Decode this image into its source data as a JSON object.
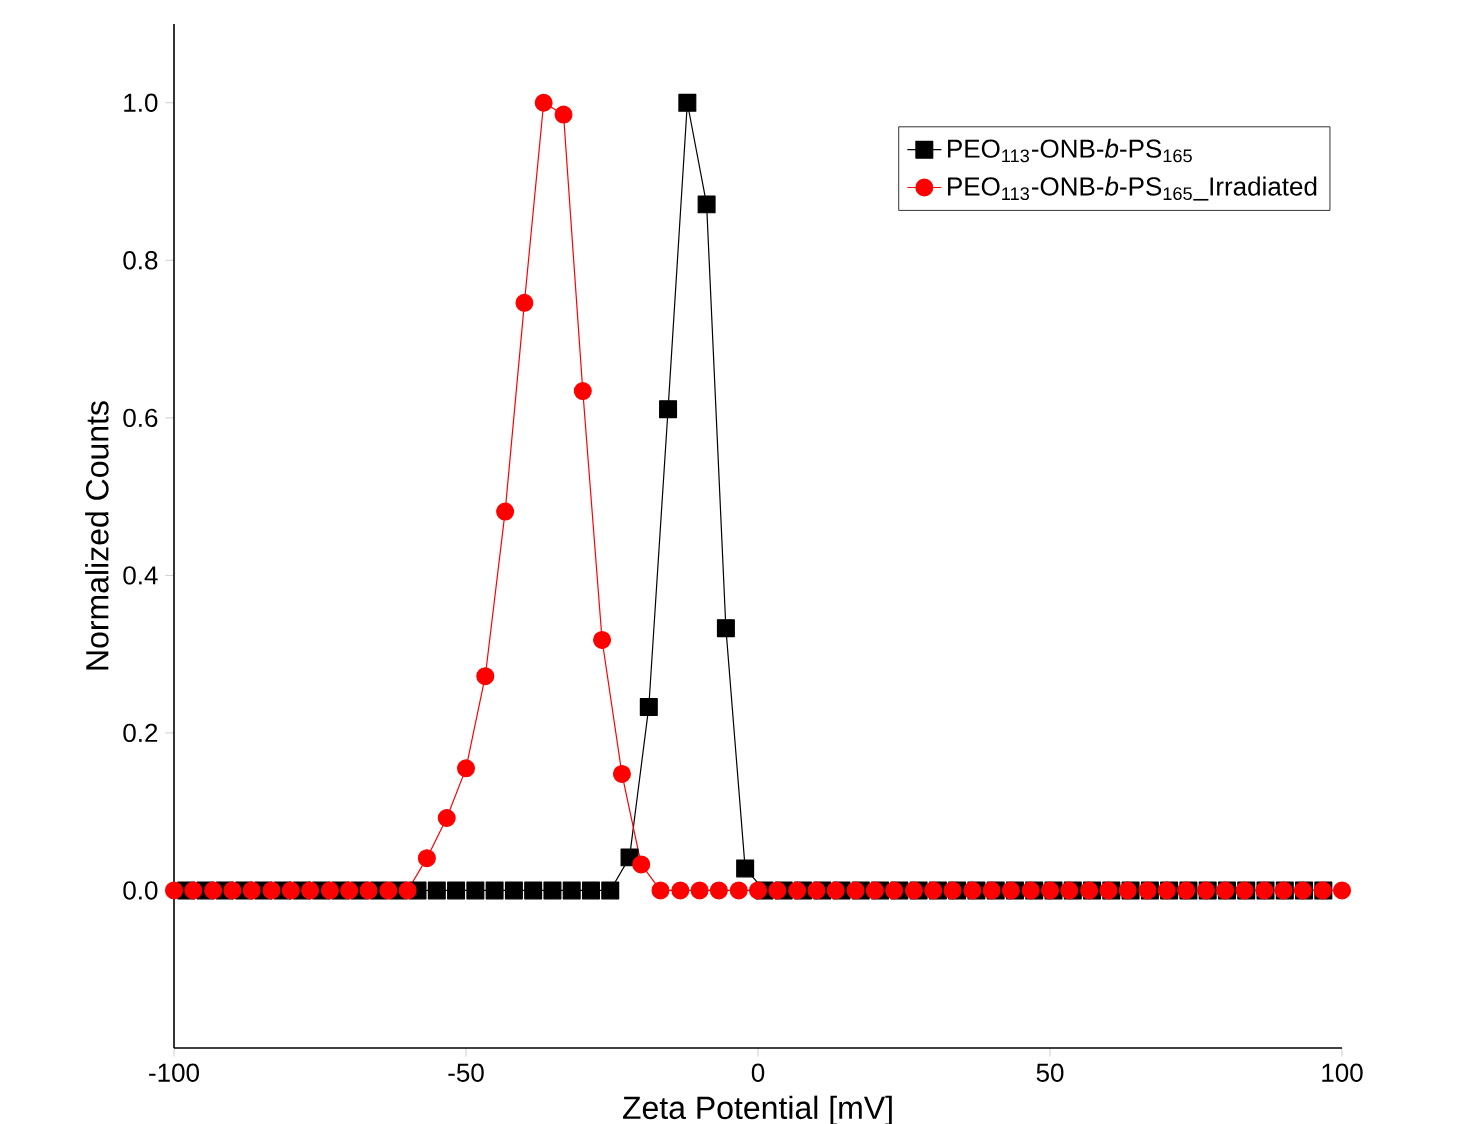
{
  "chart_data": {
    "type": "line",
    "xlabel": "Zeta Potential [mV]",
    "ylabel": "Normalized Counts",
    "xlim": [
      -100,
      100
    ],
    "xticks": [
      -100,
      -50,
      0,
      50,
      100
    ],
    "ylim": [
      -0.2,
      1.1
    ],
    "yticks": [
      {
        "value": 0,
        "label": "0.0"
      },
      {
        "value": 0.2,
        "label": "0.2"
      },
      {
        "value": 0.4,
        "label": "0.4"
      },
      {
        "value": 0.6,
        "label": "0.6"
      },
      {
        "value": 0.8,
        "label": "0.8"
      },
      {
        "value": 1.0,
        "label": "1.0"
      }
    ],
    "legend": "top right",
    "grid": false,
    "series": [
      {
        "name": "PEO$_{113}$-ONB-*b*-PS$_{165}$",
        "color": "#000000",
        "marker": "square",
        "x": [
          -97.9,
          -94.6,
          -91.3,
          -88.0,
          -84.7,
          -81.4,
          -78.1,
          -74.8,
          -71.5,
          -68.2,
          -64.9,
          -61.6,
          -58.3,
          -55.0,
          -51.7,
          -48.4,
          -45.1,
          -41.8,
          -38.5,
          -35.2,
          -31.9,
          -28.6,
          -25.3,
          -22.0,
          -18.7,
          -15.4,
          -12.1,
          -8.8,
          -5.5,
          -2.2,
          1.1,
          4.4,
          7.7,
          11.0,
          14.3,
          17.6,
          20.9,
          24.2,
          27.5,
          30.8,
          34.1,
          37.4,
          40.7,
          44.0,
          47.3,
          50.6,
          53.9,
          57.2,
          60.5,
          63.8,
          67.1,
          70.4,
          73.7,
          77.0,
          80.3,
          83.6,
          86.9,
          90.2,
          93.5,
          96.8
        ],
        "values": [
          0,
          0,
          0,
          0,
          0,
          0,
          0,
          0,
          0,
          0,
          0,
          0,
          0,
          0,
          0,
          0,
          0,
          0,
          0,
          0,
          0,
          0,
          0,
          0.042,
          0.233,
          0.611,
          1.0,
          0.871,
          0.333,
          0.028,
          0,
          0,
          0,
          0,
          0,
          0,
          0,
          0,
          0,
          0,
          0,
          0,
          0,
          0,
          0,
          0,
          0,
          0,
          0,
          0,
          0,
          0,
          0,
          0,
          0,
          0,
          0,
          0,
          0,
          0
        ]
      },
      {
        "name": "PEO$_{113}$-ONB-*b*-PS$_{165}$_Irradiated",
        "color": "#ff0000",
        "marker": "circle",
        "x": [
          -100,
          -96.7,
          -93.3,
          -90,
          -86.7,
          -83.3,
          -80,
          -76.7,
          -73.3,
          -70,
          -66.7,
          -63.3,
          -60,
          -56.7,
          -53.3,
          -50,
          -46.7,
          -43.3,
          -40,
          -36.7,
          -33.3,
          -30,
          -26.7,
          -23.3,
          -20,
          -16.7,
          -13.3,
          -10,
          -6.7,
          -3.3,
          0,
          3.3,
          6.7,
          10,
          13.3,
          16.7,
          20,
          23.3,
          26.7,
          30,
          33.3,
          36.7,
          40,
          43.3,
          46.7,
          50,
          53.3,
          56.7,
          60,
          63.3,
          66.7,
          70,
          73.3,
          76.7,
          80,
          83.3,
          86.7,
          90,
          93.3,
          96.7,
          100
        ],
        "values": [
          0,
          0,
          0,
          0,
          0,
          0,
          0,
          0,
          0,
          0,
          0,
          0,
          0,
          0.041,
          0.092,
          0.155,
          0.272,
          0.481,
          0.746,
          1.0,
          0.985,
          0.634,
          0.318,
          0.148,
          0.033,
          0,
          0,
          0,
          0,
          0,
          0,
          0,
          0,
          0,
          0,
          0,
          0,
          0,
          0,
          0,
          0,
          0,
          0,
          0,
          0,
          0,
          0,
          0,
          0,
          0,
          0,
          0,
          0,
          0,
          0,
          0,
          0,
          0,
          0,
          0,
          0
        ]
      }
    ]
  }
}
